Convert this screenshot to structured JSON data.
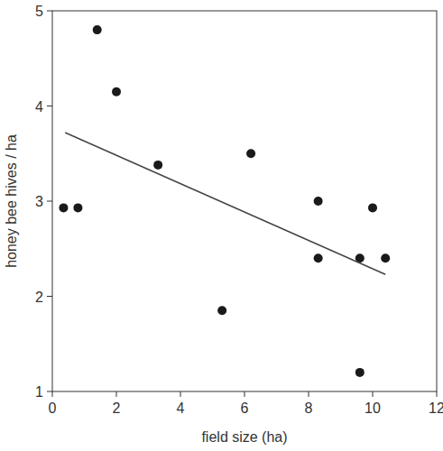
{
  "chart_data": {
    "type": "scatter",
    "x_label": "field size (ha)",
    "y_label": "honey bee hives / ha",
    "xlim": [
      0,
      12
    ],
    "xticks": [
      0,
      2,
      4,
      6,
      8,
      10,
      12
    ],
    "ylim": [
      1,
      5
    ],
    "yticks": [
      1,
      2,
      3,
      4,
      5
    ],
    "series": [
      {
        "type": "scatter",
        "color": "#1a1a1a",
        "marker": "circle",
        "x": [
          0.35,
          0.8,
          1.4,
          2.0,
          3.3,
          5.3,
          6.2,
          8.3,
          8.3,
          9.6,
          9.6,
          10.0,
          10.4
        ],
        "values": [
          2.93,
          2.93,
          4.8,
          4.15,
          3.38,
          1.85,
          3.5,
          3.0,
          2.4,
          2.4,
          1.2,
          2.93,
          2.4
        ]
      },
      {
        "type": "line",
        "color": "#444444",
        "line_style": "solid",
        "x": [
          0.4,
          10.4
        ],
        "values": [
          3.72,
          2.23
        ]
      }
    ]
  }
}
